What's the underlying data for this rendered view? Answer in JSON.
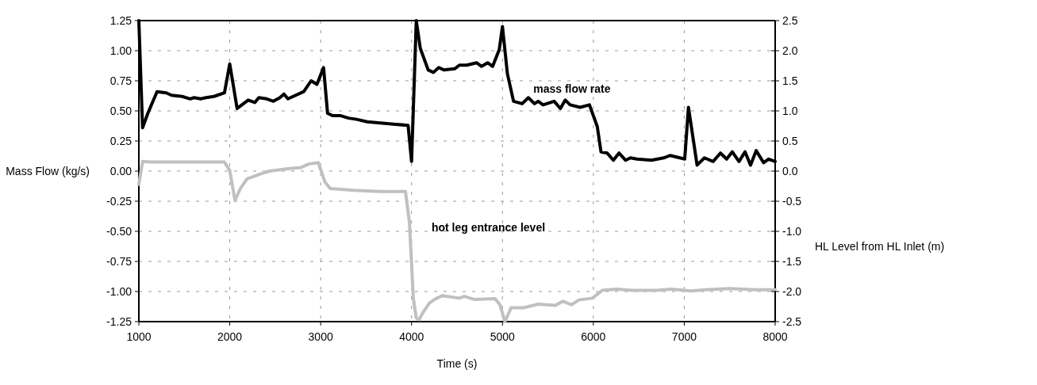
{
  "chart_data": {
    "type": "line",
    "xlabel": "Time (s)",
    "ylabel": "Mass Flow (kg/s)",
    "y2label": "HL Level from HL Inlet (m)",
    "xlim": [
      1000,
      8000
    ],
    "xticks": [
      1000,
      2000,
      3000,
      4000,
      5000,
      6000,
      7000,
      8000
    ],
    "ylim": [
      -1.25,
      1.25
    ],
    "yticks": [
      {
        "value": -1.25,
        "label": "-1.25"
      },
      {
        "value": -1,
        "label": "-1.00"
      },
      {
        "value": -0.75,
        "label": "-0.75"
      },
      {
        "value": -0.5,
        "label": "-0.50"
      },
      {
        "value": -0.25,
        "label": "-0.25"
      },
      {
        "value": 0,
        "label": "0.00"
      },
      {
        "value": 0.25,
        "label": "0.25"
      },
      {
        "value": 0.5,
        "label": "0.50"
      },
      {
        "value": 0.75,
        "label": "0.75"
      },
      {
        "value": 1,
        "label": "1.00"
      },
      {
        "value": 1.25,
        "label": "1.25"
      }
    ],
    "y2lim": [
      -2.5,
      2.5
    ],
    "y2ticks": [
      -2.5,
      {
        "value": -2,
        "label": "-2.0"
      },
      -1.5,
      {
        "value": -1,
        "label": "-1.0"
      },
      -0.5,
      {
        "value": 0,
        "label": "0.0"
      },
      0.5,
      {
        "value": 1,
        "label": "1.0"
      },
      1.5,
      {
        "value": 2,
        "label": "2.0"
      },
      2.5
    ],
    "grid": true,
    "line_style": "solid",
    "marker": "none",
    "series": [
      {
        "name": "mass flow rate",
        "color": "#000000",
        "x": [
          1000,
          1041,
          1099,
          1200,
          1302,
          1360,
          1477,
          1564,
          1608,
          1680,
          1738,
          1826,
          1942,
          2000,
          2081,
          2203,
          2276,
          2320,
          2407,
          2480,
          2552,
          2596,
          2640,
          2814,
          2895,
          2959,
          3032,
          3076,
          3134,
          3221,
          3308,
          3395,
          3512,
          3657,
          3802,
          3962,
          4000,
          4052,
          4096,
          4183,
          4241,
          4299,
          4358,
          4474,
          4526,
          4607,
          4715,
          4770,
          4837,
          4892,
          4965,
          5000,
          5054,
          5122,
          5217,
          5285,
          5352,
          5393,
          5447,
          5569,
          5637,
          5691,
          5745,
          5854,
          5957,
          6043,
          6084,
          6152,
          6220,
          6282,
          6355,
          6409,
          6477,
          6640,
          6775,
          6843,
          7005,
          7046,
          7141,
          7222,
          7317,
          7398,
          7466,
          7528,
          7602,
          7669,
          7729,
          7791,
          7873,
          7927,
          8000
        ],
        "values": [
          1.25,
          0.36,
          0.48,
          0.66,
          0.65,
          0.63,
          0.62,
          0.6,
          0.61,
          0.6,
          0.61,
          0.62,
          0.65,
          0.89,
          0.52,
          0.59,
          0.57,
          0.61,
          0.6,
          0.58,
          0.61,
          0.64,
          0.6,
          0.66,
          0.75,
          0.72,
          0.86,
          0.48,
          0.46,
          0.46,
          0.44,
          0.43,
          0.41,
          0.4,
          0.39,
          0.38,
          0.08,
          1.25,
          1.02,
          0.84,
          0.82,
          0.86,
          0.84,
          0.85,
          0.88,
          0.88,
          0.9,
          0.87,
          0.9,
          0.87,
          1.01,
          1.2,
          0.81,
          0.58,
          0.56,
          0.61,
          0.56,
          0.58,
          0.55,
          0.58,
          0.52,
          0.59,
          0.55,
          0.53,
          0.55,
          0.37,
          0.16,
          0.15,
          0.09,
          0.15,
          0.09,
          0.11,
          0.1,
          0.09,
          0.11,
          0.13,
          0.1,
          0.53,
          0.05,
          0.11,
          0.08,
          0.15,
          0.1,
          0.16,
          0.08,
          0.16,
          0.05,
          0.17,
          0.07,
          0.1,
          0.08
        ]
      },
      {
        "name": "hot leg entrance level",
        "color": "#c0c0c0",
        "axis": "y2",
        "x": [
          1000,
          1041,
          1128,
          1477,
          1942,
          2000,
          2058,
          2116,
          2189,
          2349,
          2436,
          2640,
          2785,
          2872,
          2974,
          3047,
          3105,
          3366,
          3657,
          3933,
          3977,
          4020,
          4052,
          4081,
          4125,
          4198,
          4255,
          4336,
          4526,
          4580,
          4688,
          4919,
          4973,
          5027,
          5095,
          5230,
          5393,
          5583,
          5664,
          5759,
          5840,
          5989,
          6098,
          6260,
          6423,
          6694,
          6856,
          7073,
          7236,
          7507,
          7778,
          8000
        ],
        "values": [
          -0.22,
          0.16,
          0.15,
          0.15,
          0.15,
          0.01,
          -0.49,
          -0.29,
          -0.13,
          -0.04,
          0.0,
          0.04,
          0.06,
          0.12,
          0.14,
          -0.18,
          -0.29,
          -0.32,
          -0.34,
          -0.34,
          -0.86,
          -2.12,
          -2.44,
          -2.47,
          -2.35,
          -2.19,
          -2.13,
          -2.07,
          -2.11,
          -2.08,
          -2.13,
          -2.12,
          -2.22,
          -2.5,
          -2.27,
          -2.27,
          -2.21,
          -2.23,
          -2.16,
          -2.22,
          -2.14,
          -2.11,
          -1.98,
          -1.96,
          -1.98,
          -1.98,
          -1.96,
          -1.99,
          -1.97,
          -1.95,
          -1.97,
          -1.97
        ]
      }
    ]
  }
}
